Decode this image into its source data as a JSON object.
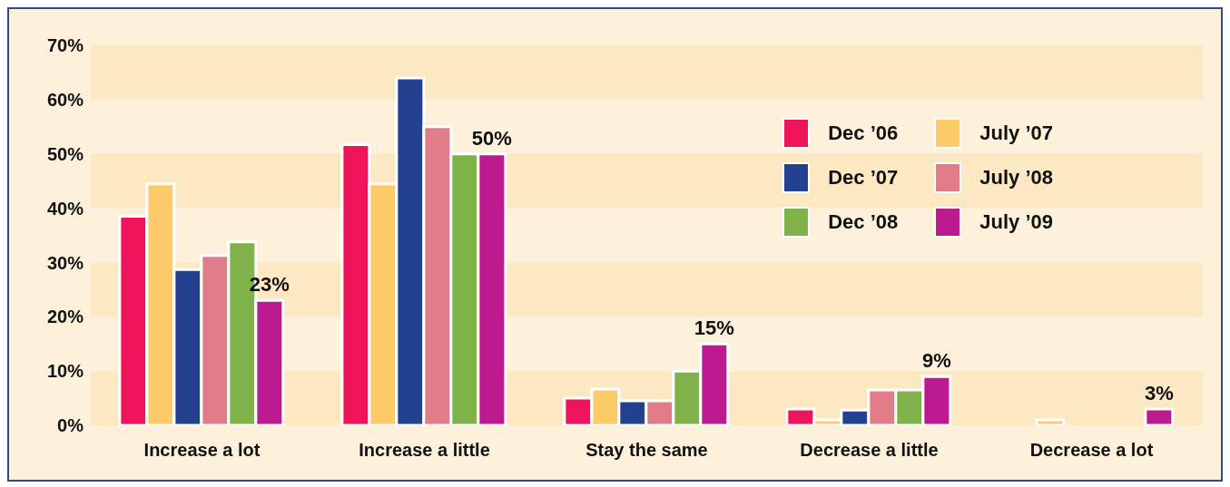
{
  "chart_data": {
    "type": "bar",
    "categories": [
      "Increase a lot",
      "Increase a little",
      "Stay the same",
      "Decrease a little",
      "Decrease a lot"
    ],
    "series": [
      {
        "name": "Dec ’06",
        "color": "#ee1459",
        "values": [
          38.5,
          51.7,
          5,
          3,
          null
        ]
      },
      {
        "name": "July ’07",
        "color": "#fecb6a",
        "values": [
          44.5,
          44.5,
          6.7,
          1,
          1
        ]
      },
      {
        "name": "Dec ’07",
        "color": "#23418f",
        "values": [
          28.7,
          64,
          4.5,
          2.8,
          null
        ]
      },
      {
        "name": "July ’08",
        "color": "#e07b88",
        "values": [
          31.3,
          55,
          4.5,
          6.5,
          null
        ]
      },
      {
        "name": "Dec ’08",
        "color": "#80b24a",
        "values": [
          33.8,
          50,
          10,
          6.5,
          null
        ]
      },
      {
        "name": "July ’09",
        "color": "#bc1a8e",
        "values": [
          23,
          50,
          15,
          9,
          3
        ],
        "value_labels": [
          "23%",
          "50%",
          "15%",
          "9%",
          "3%"
        ]
      }
    ],
    "ylim": [
      0,
      70
    ],
    "yticks": [
      {
        "value": 0,
        "label": "0%"
      },
      {
        "value": 10,
        "label": "10%"
      },
      {
        "value": 20,
        "label": "20%"
      },
      {
        "value": 30,
        "label": "30%"
      },
      {
        "value": 40,
        "label": "40%"
      },
      {
        "value": 50,
        "label": "50%"
      },
      {
        "value": 60,
        "label": "60%"
      },
      {
        "value": 70,
        "label": "70%"
      }
    ],
    "bands": [
      {
        "axis": "y",
        "from": 0,
        "to": 10,
        "color": "#fde8c4"
      },
      {
        "axis": "y",
        "from": 20,
        "to": 30,
        "color": "#fde8c4"
      },
      {
        "axis": "y",
        "from": 40,
        "to": 50,
        "color": "#fde8c4"
      },
      {
        "axis": "y",
        "from": 60,
        "to": 70,
        "color": "#fde8c4"
      }
    ],
    "legend": "top right"
  }
}
